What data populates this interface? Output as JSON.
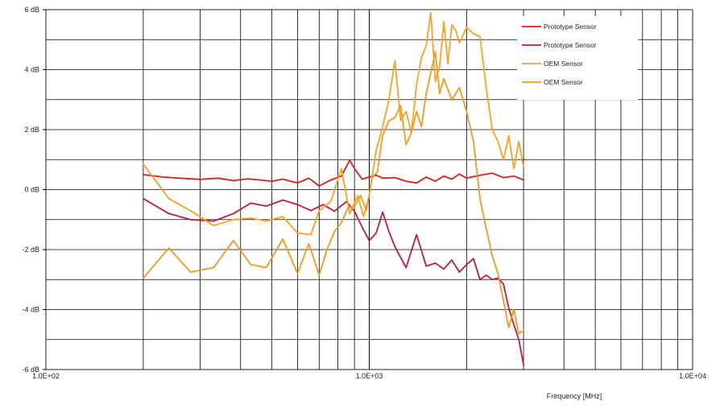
{
  "chart_data": {
    "type": "line",
    "title": "",
    "xlabel": "Frequency [MHz]",
    "ylabel": "",
    "x_scale": "log",
    "xlim": [
      100,
      10000
    ],
    "ylim": [
      -6,
      6
    ],
    "x_ticks": [
      {
        "value": 100,
        "label": "1.0E+02"
      },
      {
        "value": 1000,
        "label": "1.0E+03"
      },
      {
        "value": 10000,
        "label": "1.0E+04"
      }
    ],
    "y_ticks": [
      {
        "value": 6,
        "label": "6 dB"
      },
      {
        "value": 4,
        "label": "4 dB"
      },
      {
        "value": 2,
        "label": "2 dB"
      },
      {
        "value": 0,
        "label": "0 dB"
      },
      {
        "value": -2,
        "label": "-2 dB"
      },
      {
        "value": -4,
        "label": "-4 dB"
      },
      {
        "value": -6,
        "label": "-6 dB"
      }
    ],
    "grid": true,
    "legend_position": "top-right",
    "series": [
      {
        "name": "Prototype Sensor",
        "color": "#d81e1e",
        "x": [
          200,
          230,
          260,
          300,
          340,
          380,
          420,
          460,
          500,
          540,
          600,
          650,
          700,
          760,
          820,
          870,
          900,
          950,
          1000,
          1050,
          1100,
          1200,
          1300,
          1400,
          1500,
          1600,
          1700,
          1800,
          1900,
          2000,
          2200,
          2400,
          2600,
          2800,
          3000
        ],
        "values": [
          0.5,
          0.42,
          0.38,
          0.34,
          0.38,
          0.3,
          0.36,
          0.32,
          0.28,
          0.35,
          0.22,
          0.38,
          0.12,
          0.32,
          0.45,
          0.98,
          0.7,
          0.35,
          0.42,
          0.48,
          0.38,
          0.4,
          0.28,
          0.22,
          0.42,
          0.28,
          0.45,
          0.35,
          0.52,
          0.38,
          0.48,
          0.55,
          0.4,
          0.45,
          0.32
        ]
      },
      {
        "name": "Prototype Sensor",
        "color": "#c21a3c",
        "x": [
          200,
          240,
          280,
          330,
          380,
          430,
          480,
          540,
          600,
          660,
          720,
          780,
          850,
          900,
          950,
          1000,
          1050,
          1100,
          1150,
          1200,
          1300,
          1400,
          1500,
          1600,
          1700,
          1800,
          1900,
          2000,
          2100,
          2200,
          2300,
          2400,
          2500,
          2600,
          2700,
          2800,
          2900,
          3000
        ],
        "values": [
          -0.3,
          -0.8,
          -1.0,
          -1.05,
          -0.8,
          -0.45,
          -0.55,
          -0.35,
          -0.5,
          -0.7,
          -0.5,
          -0.72,
          -0.4,
          -0.72,
          -1.25,
          -1.7,
          -1.45,
          -0.75,
          -1.4,
          -1.9,
          -2.6,
          -1.5,
          -2.55,
          -2.45,
          -2.65,
          -2.35,
          -2.75,
          -2.5,
          -2.3,
          -3.0,
          -2.85,
          -3.0,
          -2.95,
          -3.15,
          -3.95,
          -4.5,
          -5.0,
          -5.85
        ]
      },
      {
        "name": "OEM Sensor",
        "color": "#ffa020",
        "x": [
          200,
          240,
          280,
          330,
          380,
          430,
          480,
          540,
          600,
          660,
          700,
          760,
          820,
          870,
          920,
          960,
          1000,
          1050,
          1100,
          1150,
          1200,
          1250,
          1300,
          1350,
          1400,
          1450,
          1500,
          1550,
          1600,
          1650,
          1700,
          1750,
          1800,
          1850,
          1900,
          2000,
          2100,
          2200,
          2300,
          2400,
          2500,
          2600,
          2700,
          2800,
          2900,
          3000
        ],
        "values": [
          0.85,
          -0.3,
          -0.7,
          -1.2,
          -1.0,
          -0.95,
          -1.05,
          -0.9,
          -1.45,
          -1.5,
          -0.7,
          -0.4,
          0.7,
          -0.8,
          -0.2,
          -0.9,
          -0.2,
          1.3,
          2.1,
          3.0,
          4.3,
          2.3,
          2.6,
          1.9,
          3.5,
          4.4,
          4.8,
          5.9,
          3.6,
          4.1,
          5.6,
          4.2,
          5.5,
          5.3,
          4.9,
          5.4,
          5.2,
          5.1,
          3.4,
          2.0,
          1.6,
          1.0,
          1.8,
          0.7,
          1.6,
          0.75
        ]
      },
      {
        "name": "OEM Sensor",
        "color": "#f39a1e",
        "x": [
          200,
          240,
          280,
          330,
          380,
          430,
          480,
          540,
          600,
          650,
          700,
          740,
          780,
          820,
          860,
          900,
          940,
          980,
          1020,
          1060,
          1100,
          1150,
          1200,
          1250,
          1300,
          1350,
          1400,
          1450,
          1500,
          1550,
          1600,
          1650,
          1700,
          1800,
          1900,
          2000,
          2100,
          2200,
          2300,
          2400,
          2500,
          2600,
          2700,
          2800,
          2900,
          3000
        ],
        "values": [
          -2.95,
          -1.95,
          -2.75,
          -2.6,
          -1.7,
          -2.5,
          -2.6,
          -1.65,
          -2.8,
          -1.8,
          -2.85,
          -2.0,
          -1.4,
          -1.1,
          -0.6,
          -0.55,
          -0.2,
          -0.7,
          0.4,
          0.6,
          1.8,
          2.3,
          2.4,
          2.8,
          1.5,
          1.9,
          2.6,
          2.1,
          3.2,
          3.9,
          4.6,
          3.2,
          3.7,
          3.0,
          3.4,
          2.6,
          1.6,
          -0.3,
          -1.3,
          -2.2,
          -2.8,
          -3.7,
          -4.6,
          -4.0,
          -4.8,
          -4.7
        ]
      }
    ]
  }
}
